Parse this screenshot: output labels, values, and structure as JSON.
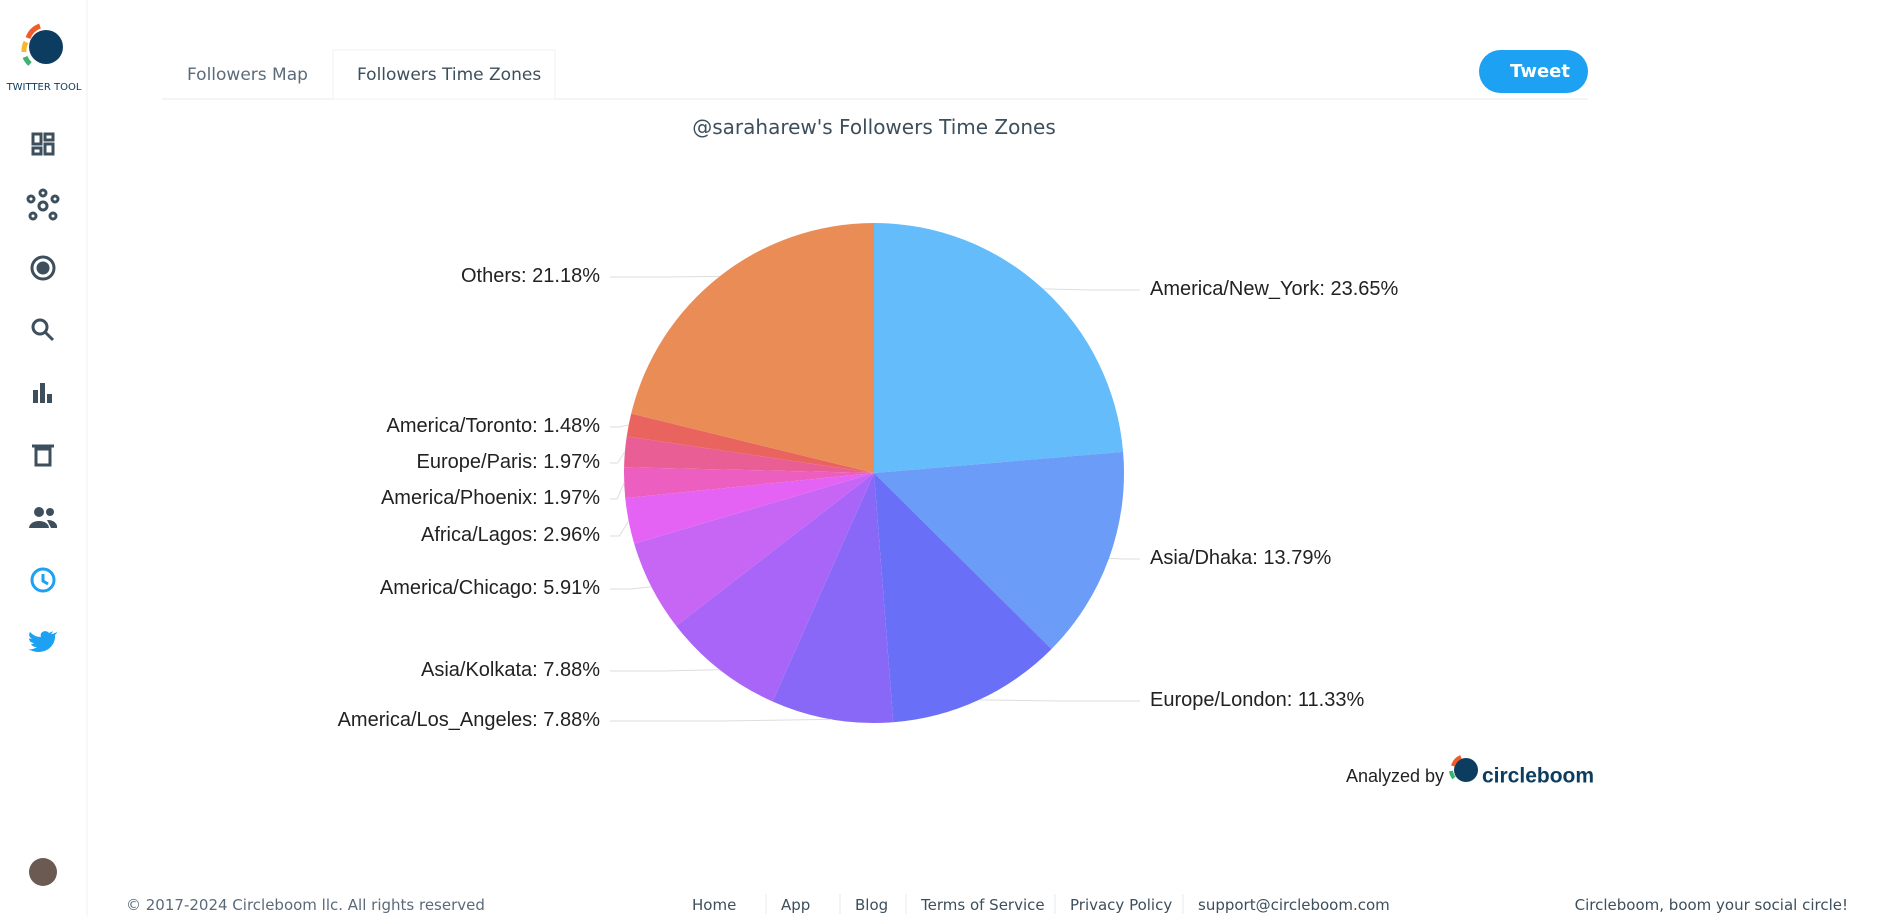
{
  "brand": "TWITTER TOOL",
  "tabs": [
    "Followers Map",
    "Followers Time Zones"
  ],
  "tweet_button": "Tweet",
  "analyzed_by": "Analyzed by",
  "logo_text": "circleboom",
  "footer": {
    "copyright": "© 2017-2024 Circleboom llc. All rights reserved",
    "links": [
      "Home",
      "App",
      "Blog",
      "Terms of Service",
      "Privacy Policy",
      "support@circleboom.com"
    ],
    "slogan": "Circleboom, boom your social circle!"
  },
  "chart_data": {
    "type": "pie",
    "title": "@saraharew's Followers Time Zones",
    "categories": [
      "America/New_York",
      "Asia/Dhaka",
      "Europe/London",
      "America/Los_Angeles",
      "Asia/Kolkata",
      "America/Chicago",
      "Africa/Lagos",
      "America/Phoenix",
      "Europe/Paris",
      "America/Toronto",
      "Others"
    ],
    "values": [
      23.65,
      13.79,
      11.33,
      7.88,
      7.88,
      5.91,
      2.96,
      1.97,
      1.97,
      1.48,
      21.18
    ],
    "value_labels": [
      "23.65%",
      "13.79%",
      "11.33%",
      "7.88%",
      "7.88%",
      "5.91%",
      "2.96%",
      "1.97%",
      "1.97%",
      "1.48%",
      "21.18%"
    ],
    "colors": [
      "#64bcfb",
      "#6b9cf7",
      "#6a6ff8",
      "#8a68f7",
      "#a865f7",
      "#c765f5",
      "#e463f5",
      "#ec5fc0",
      "#e95e94",
      "#e9645e",
      "#ea8c55"
    ]
  }
}
